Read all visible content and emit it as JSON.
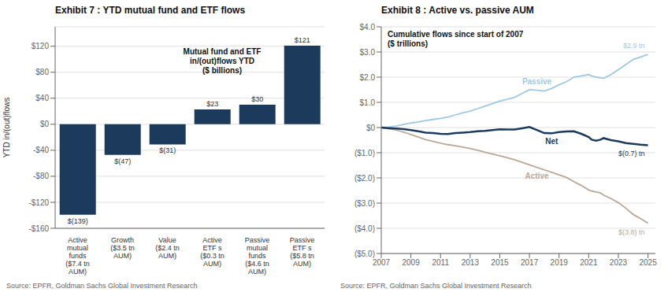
{
  "chart_data": [
    {
      "type": "bar",
      "title": "Exhibit 7 : YTD mutual fund and ETF flows",
      "annotations": [
        "Mutual fund and ETF\nin/(out)flows YTD\n($ billions)"
      ],
      "ylabel": "YTD in/(out)flows",
      "source": "Source: EPFR, Goldman Sachs Global Investment Research",
      "categories": [
        "Active\nmutual\nfunds\n($7.4 tn\nAUM)",
        "Growth\n($3.5 tn\nAUM)",
        "Value\n($2.4 tn\nAUM)",
        "Active\nETF s\n($0.3 tn\nAUM)",
        "Passive\nmutual\nfunds\n($4.6 tn\nAUM)",
        "Passive\nETF s\n($5.8 tn\nAUM)"
      ],
      "values": [
        -139,
        -47,
        -31,
        23,
        30,
        121
      ],
      "value_labels": [
        "$(139)",
        "$(47)",
        "$(31)",
        "$23",
        "$30",
        "$121"
      ],
      "data_labels": true,
      "color": "#1b3a5c",
      "ylim": [
        -160,
        150
      ],
      "yticks": [
        {
          "value": -160,
          "label": "-$160"
        },
        {
          "value": -120,
          "label": "-$120"
        },
        {
          "value": -80,
          "label": "-$80"
        },
        {
          "value": -40,
          "label": "-$40"
        },
        {
          "value": 0,
          "label": "$0"
        },
        {
          "value": 40,
          "label": "$40"
        },
        {
          "value": 80,
          "label": "$80"
        },
        {
          "value": 120,
          "label": "$120"
        }
      ],
      "grid": true
    },
    {
      "type": "line",
      "title": "Exhibit 8 : Active vs. passive AUM",
      "annotations": [
        "Cumulative flows since start of 2007\n($ trillions)"
      ],
      "source": "Source: EPFR, Goldman Sachs Global Investment Research",
      "x": [
        2007,
        2007.5,
        2008,
        2008.5,
        2009,
        2009.5,
        2010,
        2010.5,
        2011,
        2011.5,
        2012,
        2012.5,
        2013,
        2013.5,
        2014,
        2014.5,
        2015,
        2015.5,
        2016,
        2016.5,
        2017,
        2017.5,
        2018,
        2018.5,
        2019,
        2019.5,
        2020,
        2020.5,
        2021,
        2021.2,
        2021.5,
        2021.8,
        2022,
        2022.5,
        2023,
        2023.5,
        2024,
        2024.5,
        2025
      ],
      "series": [
        {
          "name": "Passive",
          "color": "#9ec9e0",
          "end_label": "$2.9 tn",
          "values": [
            0.0,
            0.02,
            0.06,
            0.12,
            0.18,
            0.22,
            0.28,
            0.32,
            0.36,
            0.42,
            0.5,
            0.58,
            0.65,
            0.75,
            0.85,
            0.95,
            1.05,
            1.12,
            1.2,
            1.35,
            1.5,
            1.48,
            1.45,
            1.55,
            1.7,
            1.82,
            2.0,
            2.05,
            2.1,
            2.05,
            2.0,
            1.97,
            1.95,
            2.1,
            2.3,
            2.5,
            2.7,
            2.8,
            2.9
          ]
        },
        {
          "name": "Active",
          "color": "#b8a898",
          "end_label": "$(3.8) tn",
          "values": [
            0.0,
            -0.05,
            -0.1,
            -0.18,
            -0.28,
            -0.38,
            -0.48,
            -0.55,
            -0.62,
            -0.68,
            -0.72,
            -0.78,
            -0.83,
            -0.9,
            -0.98,
            -1.05,
            -1.12,
            -1.2,
            -1.28,
            -1.38,
            -1.48,
            -1.58,
            -1.68,
            -1.78,
            -1.88,
            -1.98,
            -2.15,
            -2.3,
            -2.48,
            -2.52,
            -2.56,
            -2.6,
            -2.68,
            -2.82,
            -2.98,
            -3.2,
            -3.45,
            -3.62,
            -3.8
          ]
        },
        {
          "name": "Net",
          "color": "#1b3a5c",
          "end_label": "$(0.7) tn",
          "values": [
            0.0,
            -0.02,
            -0.04,
            -0.06,
            -0.1,
            -0.15,
            -0.2,
            -0.22,
            -0.25,
            -0.26,
            -0.22,
            -0.2,
            -0.18,
            -0.15,
            -0.13,
            -0.1,
            -0.07,
            -0.08,
            -0.08,
            -0.03,
            0.02,
            -0.1,
            -0.22,
            -0.23,
            -0.18,
            -0.16,
            -0.15,
            -0.25,
            -0.38,
            -0.48,
            -0.52,
            -0.48,
            -0.42,
            -0.5,
            -0.55,
            -0.62,
            -0.65,
            -0.68,
            -0.7
          ]
        }
      ],
      "xlim": [
        2007,
        2025.5
      ],
      "xticks": [
        2007,
        2009,
        2011,
        2013,
        2015,
        2017,
        2019,
        2021,
        2023,
        2025
      ],
      "ylim": [
        -5.0,
        4.0
      ],
      "yticks": [
        {
          "value": -5.0,
          "label": "($5.0)"
        },
        {
          "value": -4.0,
          "label": "($4.0)"
        },
        {
          "value": -3.0,
          "label": "($3.0)"
        },
        {
          "value": -2.0,
          "label": "($2.0)"
        },
        {
          "value": -1.0,
          "label": "($1.0)"
        },
        {
          "value": 0.0,
          "label": "$0"
        },
        {
          "value": 1.0,
          "label": "$1.0"
        },
        {
          "value": 2.0,
          "label": "$2.0"
        },
        {
          "value": 3.0,
          "label": "$3.0"
        },
        {
          "value": 4.0,
          "label": "$4.0"
        }
      ],
      "grid": true
    }
  ]
}
